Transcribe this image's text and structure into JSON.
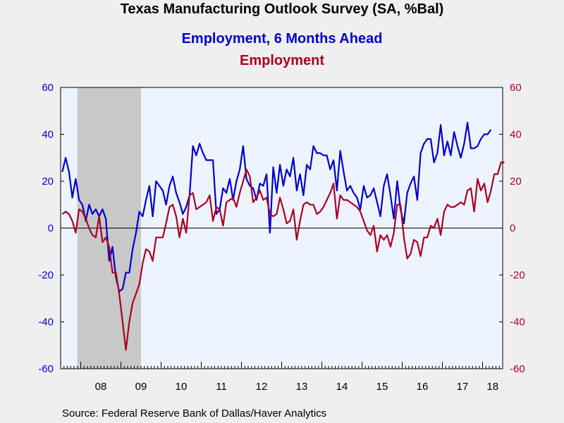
{
  "chart_data": {
    "type": "line",
    "title": "Texas Manufacturing Outlook Survey (SA, %Bal)",
    "xlabel": "",
    "ylabel": "",
    "x_start": "2007-07",
    "x_end": "2018-06",
    "x_tick_labels": [
      "08",
      "09",
      "10",
      "11",
      "12",
      "13",
      "14",
      "15",
      "16",
      "17",
      "18"
    ],
    "ylim": [
      -60,
      60
    ],
    "yticks_left": [
      "60",
      "40",
      "20",
      "0",
      "-20",
      "-40",
      "-60"
    ],
    "yticks_right": [
      "60",
      "40",
      "20",
      "0",
      "-20",
      "-40",
      "-60"
    ],
    "recession": {
      "start": "2007-12",
      "end": "2009-06"
    },
    "zero_line": true,
    "grid": false,
    "series": [
      {
        "name": "Employment, 6 Months Ahead",
        "color": "#0000cc",
        "axis": "left",
        "values": [
          24,
          30,
          24,
          13,
          21,
          12,
          10,
          3,
          10,
          6,
          8,
          5,
          8,
          4,
          -14,
          -8,
          -21,
          -27,
          -26,
          -19,
          -19,
          -9,
          -2,
          7,
          5,
          12,
          18,
          5,
          20,
          18,
          16,
          10,
          18,
          22,
          15,
          11,
          6,
          9,
          14,
          35,
          31,
          36,
          32,
          29,
          29,
          29,
          6,
          8,
          17,
          15,
          21,
          12,
          20,
          25,
          35,
          21,
          18,
          17,
          12,
          19,
          18,
          23,
          -2,
          26,
          15,
          27,
          18,
          25,
          22,
          30,
          16,
          23,
          14,
          27,
          25,
          35,
          32,
          32,
          31,
          31,
          25,
          29,
          16,
          33,
          24,
          16,
          18,
          15,
          13,
          8,
          18,
          13,
          14,
          17,
          11,
          5,
          18,
          23,
          14,
          4,
          20,
          8,
          2,
          15,
          19,
          22,
          12,
          32,
          36,
          38,
          38,
          28,
          32,
          44,
          31,
          37,
          31,
          41,
          35,
          30,
          36,
          45,
          34,
          34,
          35,
          38,
          40,
          40,
          42
        ]
      },
      {
        "name": "Employment",
        "color": "#aa0022",
        "axis": "left",
        "values": [
          6,
          7,
          6,
          3,
          -2,
          8,
          7,
          4,
          0,
          -3,
          -4,
          5,
          -6,
          -4,
          -8,
          -19,
          -19,
          -28,
          -40,
          -52,
          -40,
          -32,
          -28,
          -24,
          -15,
          -9,
          -10,
          -14,
          -4,
          -4,
          -4,
          2,
          9,
          10,
          5,
          -4,
          4,
          -2,
          14,
          15,
          8,
          9,
          10,
          11,
          14,
          3,
          9,
          8,
          1,
          11,
          12,
          13,
          9,
          15,
          20,
          25,
          22,
          11,
          13,
          16,
          12,
          13,
          6,
          5,
          6,
          13,
          8,
          2,
          3,
          8,
          -5,
          3,
          10,
          11,
          10,
          10,
          6,
          7,
          9,
          12,
          15,
          19,
          4,
          14,
          12,
          12,
          11,
          10,
          9,
          7,
          3,
          -1,
          -3,
          1,
          -10,
          -3,
          -5,
          -3,
          -8,
          -2,
          10,
          10,
          -4,
          -13,
          -11,
          -5,
          -6,
          -12,
          -4,
          -4,
          1,
          0,
          4,
          -3,
          7,
          10,
          9,
          9,
          10,
          11,
          10,
          16,
          17,
          7,
          21,
          16,
          19,
          11,
          16,
          23,
          23,
          28,
          28
        ]
      }
    ]
  },
  "source_text": "Source:  Federal Reserve Bank of Dallas/Haver Analytics"
}
